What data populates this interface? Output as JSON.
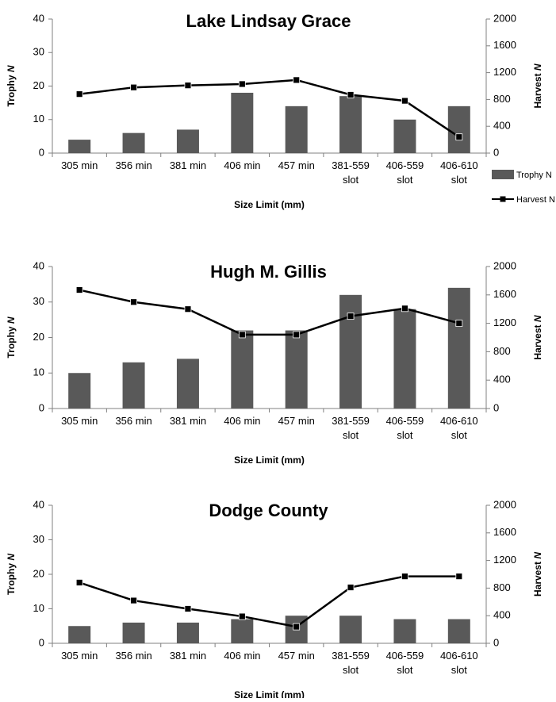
{
  "chart_data": [
    {
      "type": "bar",
      "title": "Lake Lindsay Grace",
      "categories": [
        [
          "305 min"
        ],
        [
          "356 min"
        ],
        [
          "381 min"
        ],
        [
          "406 min"
        ],
        [
          "457 min"
        ],
        [
          "381-559",
          "slot"
        ],
        [
          "406-559",
          "slot"
        ],
        [
          "406-610",
          "slot"
        ]
      ],
      "xlabel": "Size Limit (mm)",
      "ylabel": "Trophy N",
      "y2label": "Harvest N",
      "ylim": [
        0,
        40
      ],
      "y2lim": [
        0,
        2000
      ],
      "yticks": [
        0,
        10,
        20,
        30,
        40
      ],
      "y2ticks": [
        0,
        400,
        800,
        1200,
        1600,
        2000
      ],
      "series": [
        {
          "name": "Trophy N",
          "type": "bar",
          "axis": "left",
          "values": [
            4,
            6,
            7,
            18,
            14,
            17,
            10,
            14
          ]
        },
        {
          "name": "Harvest N",
          "type": "line",
          "axis": "right",
          "values": [
            880,
            980,
            1010,
            1030,
            1090,
            870,
            780,
            240
          ]
        }
      ],
      "legend": {
        "position": "right",
        "entries": [
          "Trophy N",
          "Harvest N"
        ]
      }
    },
    {
      "type": "bar",
      "title": "Hugh M. Gillis",
      "categories": [
        [
          "305 min"
        ],
        [
          "356 min"
        ],
        [
          "381 min"
        ],
        [
          "406 min"
        ],
        [
          "457 min"
        ],
        [
          "381-559",
          "slot"
        ],
        [
          "406-559",
          "slot"
        ],
        [
          "406-610",
          "slot"
        ]
      ],
      "xlabel": "Size Limit (mm)",
      "ylabel": "Trophy N",
      "y2label": "Harvest N",
      "ylim": [
        0,
        40
      ],
      "y2lim": [
        0,
        2000
      ],
      "yticks": [
        0,
        10,
        20,
        30,
        40
      ],
      "y2ticks": [
        0,
        400,
        800,
        1200,
        1600,
        2000
      ],
      "series": [
        {
          "name": "Trophy N",
          "type": "bar",
          "axis": "left",
          "values": [
            10,
            13,
            14,
            22,
            22,
            32,
            28,
            34
          ]
        },
        {
          "name": "Harvest N",
          "type": "line",
          "axis": "right",
          "values": [
            1670,
            1500,
            1400,
            1040,
            1040,
            1300,
            1410,
            1200
          ]
        }
      ]
    },
    {
      "type": "bar",
      "title": "Dodge County",
      "categories": [
        [
          "305 min"
        ],
        [
          "356 min"
        ],
        [
          "381 min"
        ],
        [
          "406 min"
        ],
        [
          "457 min"
        ],
        [
          "381-559",
          "slot"
        ],
        [
          "406-559",
          "slot"
        ],
        [
          "406-610",
          "slot"
        ]
      ],
      "xlabel": "Size Limit (mm)",
      "ylabel": "Trophy N",
      "y2label": "Harvest N",
      "ylim": [
        0,
        40
      ],
      "y2lim": [
        0,
        2000
      ],
      "yticks": [
        0,
        10,
        20,
        30,
        40
      ],
      "y2ticks": [
        0,
        400,
        800,
        1200,
        1600,
        2000
      ],
      "series": [
        {
          "name": "Trophy N",
          "type": "bar",
          "axis": "left",
          "values": [
            5,
            6,
            6,
            7,
            8,
            8,
            7,
            7
          ]
        },
        {
          "name": "Harvest N",
          "type": "line",
          "axis": "right",
          "values": [
            880,
            620,
            500,
            390,
            240,
            810,
            970,
            970
          ]
        }
      ]
    }
  ],
  "colors": {
    "bar": "#595959",
    "line": "#000000",
    "marker": "#000000",
    "axis": "#808080"
  }
}
